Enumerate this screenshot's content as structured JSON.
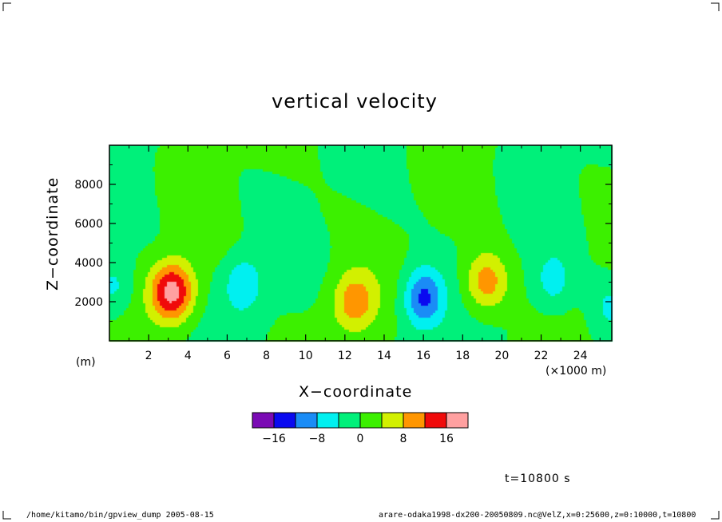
{
  "chart_data": {
    "type": "heatmap",
    "title": "vertical velocity",
    "xlabel": "X−coordinate",
    "ylabel": "Z−coordinate",
    "x_unit": "(×1000 m)",
    "y_unit": "(m)",
    "xlim": [
      0,
      25.6
    ],
    "ylim": [
      0,
      10000
    ],
    "x_ticks": [
      "2",
      "4",
      "6",
      "8",
      "10",
      "12",
      "14",
      "16",
      "18",
      "20",
      "22",
      "24"
    ],
    "y_ticks": [
      "2000",
      "4000",
      "6000",
      "8000"
    ],
    "colorbar": {
      "colors": [
        "#7a0ab4",
        "#0a0af0",
        "#1a8cf6",
        "#00f0f0",
        "#00f07a",
        "#3cf000",
        "#d2f000",
        "#ff9600",
        "#f00a0a",
        "#ffa0a0"
      ],
      "labels": [
        "−16",
        "−8",
        "0",
        "8",
        "16"
      ],
      "level_step": 4,
      "level_min": -20
    },
    "cells": [
      {
        "x": 0.2,
        "z": 2800,
        "w": -6
      },
      {
        "x": 3.2,
        "z": 2500,
        "w": 18
      },
      {
        "x": 6.8,
        "z": 2900,
        "w": -7
      },
      {
        "x": 12.5,
        "z": 2000,
        "w": 10
      },
      {
        "x": 16.0,
        "z": 2200,
        "w": -13
      },
      {
        "x": 19.2,
        "z": 3000,
        "w": 11
      },
      {
        "x": 22.6,
        "z": 3000,
        "w": -6
      },
      {
        "x": 25.5,
        "z": 1800,
        "w": -5
      }
    ],
    "time_label": "t=10800 s"
  },
  "footer": {
    "left": "/home/kitamo/bin/gpview_dump  2005-08-15",
    "right": "arare-odaka1998-dx200-20050809.nc@VelZ,x=0:25600,z=0:10000,t=10800"
  }
}
